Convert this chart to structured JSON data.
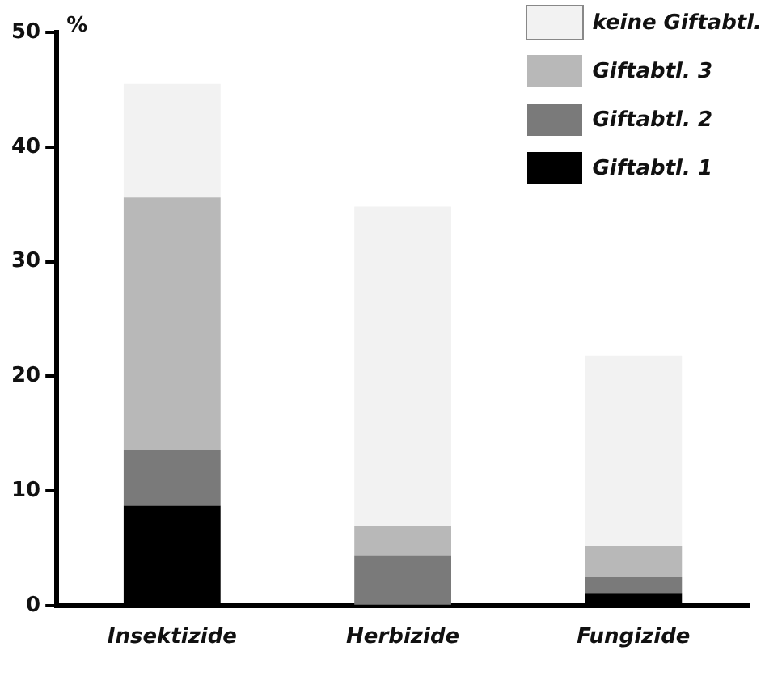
{
  "chart_data": {
    "type": "bar",
    "stacked": true,
    "ylabel": "%",
    "categories": [
      "Insektizide",
      "Herbizide",
      "Fungizide"
    ],
    "series": [
      {
        "name": "Giftabtl. 1",
        "color": "#000000",
        "values": [
          8.7,
          0,
          1.1
        ]
      },
      {
        "name": "Giftabtl. 2",
        "color": "#7a7a7a",
        "values": [
          4.9,
          4.4,
          1.4
        ]
      },
      {
        "name": "Giftabtl. 3",
        "color": "#b8b8b8",
        "values": [
          22.0,
          2.5,
          2.7
        ]
      },
      {
        "name": "keine Giftabtl.",
        "color": "#f2f2f2",
        "values": [
          9.9,
          27.9,
          16.6
        ]
      }
    ],
    "ylim": [
      0,
      50
    ],
    "yticks": [
      0,
      10,
      20,
      30,
      40,
      50
    ],
    "grid": false,
    "legend": "top right"
  }
}
